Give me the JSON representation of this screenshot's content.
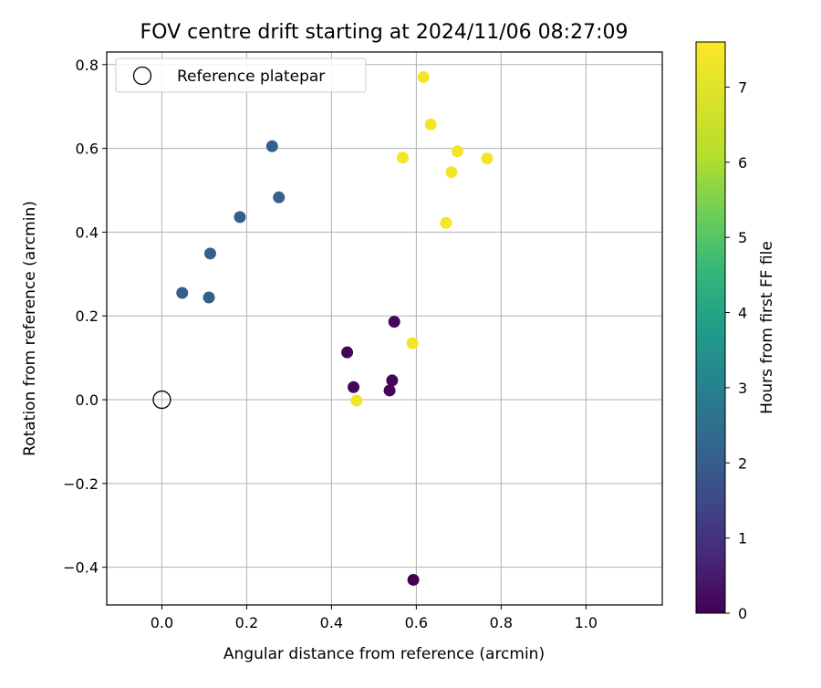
{
  "chart_data": {
    "type": "scatter",
    "title": "FOV centre drift starting at 2024/11/06 08:27:09",
    "xlabel": "Angular distance from reference (arcmin)",
    "ylabel": "Rotation from reference (arcmin)",
    "xlim": [
      -0.13,
      1.18
    ],
    "ylim": [
      -0.49,
      0.83
    ],
    "xticks": [
      0.0,
      0.2,
      0.4,
      0.6,
      0.8,
      1.0
    ],
    "xtick_labels": [
      "0.0",
      "0.2",
      "0.4",
      "0.6",
      "0.8",
      "1.0"
    ],
    "yticks": [
      -0.4,
      -0.2,
      0.0,
      0.2,
      0.4,
      0.6,
      0.8
    ],
    "ytick_labels": [
      "−0.4",
      "−0.2",
      "0.0",
      "0.2",
      "0.4",
      "0.6",
      "0.8"
    ],
    "grid": true,
    "legend": {
      "position": "top-left",
      "entries": [
        "Reference platepar"
      ]
    },
    "reference": {
      "x": 0.0,
      "y": 0.0,
      "label": "Reference platepar",
      "marker": "open-circle"
    },
    "colorbar": {
      "label": "Hours from first FF file",
      "colormap": "viridis",
      "range": [
        0,
        7.6
      ],
      "ticks": [
        0,
        1,
        2,
        3,
        4,
        5,
        6,
        7
      ],
      "tick_labels": [
        "0",
        "1",
        "2",
        "3",
        "4",
        "5",
        "6",
        "7"
      ]
    },
    "points": [
      {
        "x": 0.593,
        "y": -0.43,
        "hours": 0.0
      },
      {
        "x": 0.548,
        "y": 0.186,
        "hours": 0.1
      },
      {
        "x": 0.437,
        "y": 0.113,
        "hours": 0.1
      },
      {
        "x": 0.452,
        "y": 0.03,
        "hours": 0.1
      },
      {
        "x": 0.543,
        "y": 0.046,
        "hours": 0.1
      },
      {
        "x": 0.537,
        "y": 0.022,
        "hours": 0.1
      },
      {
        "x": 0.26,
        "y": 0.605,
        "hours": 2.3
      },
      {
        "x": 0.276,
        "y": 0.483,
        "hours": 2.3
      },
      {
        "x": 0.184,
        "y": 0.436,
        "hours": 2.3
      },
      {
        "x": 0.114,
        "y": 0.349,
        "hours": 2.3
      },
      {
        "x": 0.048,
        "y": 0.255,
        "hours": 2.3
      },
      {
        "x": 0.111,
        "y": 0.244,
        "hours": 2.3
      },
      {
        "x": 0.617,
        "y": 0.77,
        "hours": 7.5
      },
      {
        "x": 0.634,
        "y": 0.657,
        "hours": 7.5
      },
      {
        "x": 0.697,
        "y": 0.593,
        "hours": 7.5
      },
      {
        "x": 0.568,
        "y": 0.578,
        "hours": 7.5
      },
      {
        "x": 0.767,
        "y": 0.576,
        "hours": 7.5
      },
      {
        "x": 0.683,
        "y": 0.543,
        "hours": 7.5
      },
      {
        "x": 0.67,
        "y": 0.422,
        "hours": 7.5
      },
      {
        "x": 0.591,
        "y": 0.135,
        "hours": 7.5
      },
      {
        "x": 0.459,
        "y": -0.002,
        "hours": 7.5
      }
    ]
  }
}
